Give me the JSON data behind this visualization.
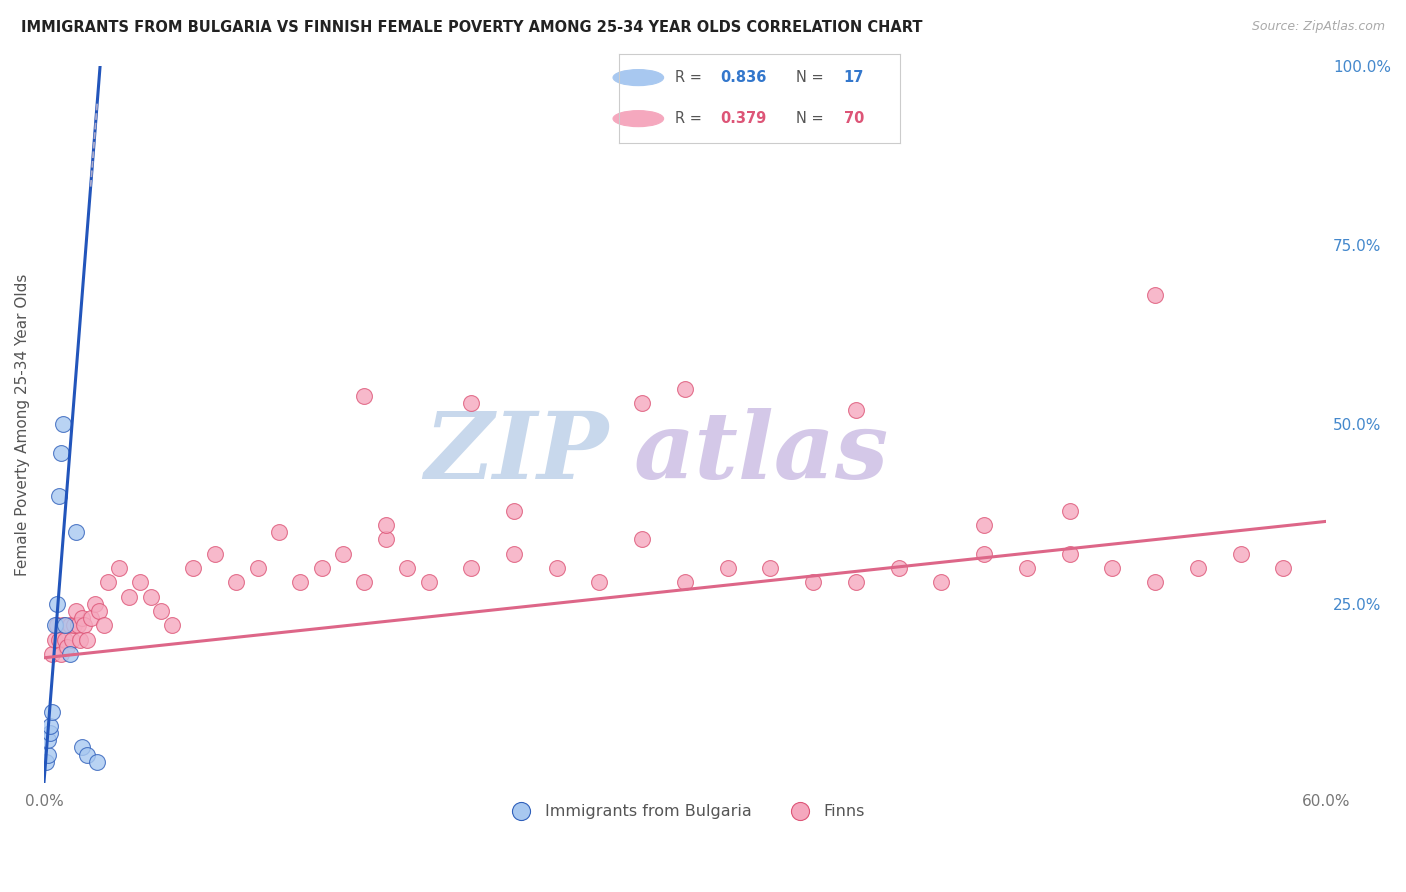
{
  "title": "IMMIGRANTS FROM BULGARIA VS FINNISH FEMALE POVERTY AMONG 25-34 YEAR OLDS CORRELATION CHART",
  "source": "Source: ZipAtlas.com",
  "ylabel": "Female Poverty Among 25-34 Year Olds",
  "xlim": [
    0.0,
    0.6
  ],
  "ylim": [
    0.0,
    1.0
  ],
  "bg_color": "#ffffff",
  "grid_color": "#e0e0e8",
  "blue_fill": "#a8c8f0",
  "blue_edge": "#3060bb",
  "blue_line": "#2255bb",
  "pink_fill": "#f5a8be",
  "pink_edge": "#dd5577",
  "pink_line": "#dd6688",
  "watermark_zip_color": "#c8d8ec",
  "watermark_atlas_color": "#d4c8e8",
  "legend_box_color": "#f5f5f5",
  "blue_scatter_x": [
    0.001,
    0.002,
    0.002,
    0.003,
    0.003,
    0.004,
    0.005,
    0.006,
    0.007,
    0.008,
    0.009,
    0.01,
    0.012,
    0.015,
    0.018,
    0.02,
    0.025
  ],
  "blue_scatter_y": [
    0.03,
    0.04,
    0.06,
    0.07,
    0.08,
    0.1,
    0.22,
    0.25,
    0.4,
    0.46,
    0.5,
    0.22,
    0.18,
    0.35,
    0.05,
    0.04,
    0.03
  ],
  "blue_line_x0": 0.0,
  "blue_line_y0": 0.0,
  "blue_line_slope": 38.0,
  "pink_line_x0": 0.0,
  "pink_line_y0": 0.175,
  "pink_line_x1": 0.6,
  "pink_line_y1": 0.365,
  "pink_scatter_x": [
    0.004,
    0.005,
    0.006,
    0.007,
    0.008,
    0.009,
    0.01,
    0.011,
    0.012,
    0.013,
    0.014,
    0.015,
    0.016,
    0.017,
    0.018,
    0.019,
    0.02,
    0.022,
    0.024,
    0.026,
    0.028,
    0.03,
    0.035,
    0.04,
    0.045,
    0.05,
    0.055,
    0.06,
    0.07,
    0.08,
    0.09,
    0.1,
    0.11,
    0.12,
    0.13,
    0.14,
    0.15,
    0.16,
    0.17,
    0.18,
    0.2,
    0.22,
    0.24,
    0.26,
    0.28,
    0.3,
    0.32,
    0.34,
    0.36,
    0.38,
    0.4,
    0.42,
    0.44,
    0.46,
    0.48,
    0.5,
    0.52,
    0.54,
    0.56,
    0.58,
    0.3,
    0.2,
    0.15,
    0.28,
    0.38,
    0.16,
    0.22,
    0.44,
    0.48,
    0.52
  ],
  "pink_scatter_y": [
    0.18,
    0.2,
    0.22,
    0.2,
    0.18,
    0.22,
    0.2,
    0.19,
    0.22,
    0.2,
    0.22,
    0.24,
    0.22,
    0.2,
    0.23,
    0.22,
    0.2,
    0.23,
    0.25,
    0.24,
    0.22,
    0.28,
    0.3,
    0.26,
    0.28,
    0.26,
    0.24,
    0.22,
    0.3,
    0.32,
    0.28,
    0.3,
    0.35,
    0.28,
    0.3,
    0.32,
    0.28,
    0.34,
    0.3,
    0.28,
    0.3,
    0.32,
    0.3,
    0.28,
    0.34,
    0.28,
    0.3,
    0.3,
    0.28,
    0.28,
    0.3,
    0.28,
    0.32,
    0.3,
    0.32,
    0.3,
    0.28,
    0.3,
    0.32,
    0.3,
    0.55,
    0.53,
    0.54,
    0.53,
    0.52,
    0.36,
    0.38,
    0.36,
    0.38,
    0.68
  ]
}
